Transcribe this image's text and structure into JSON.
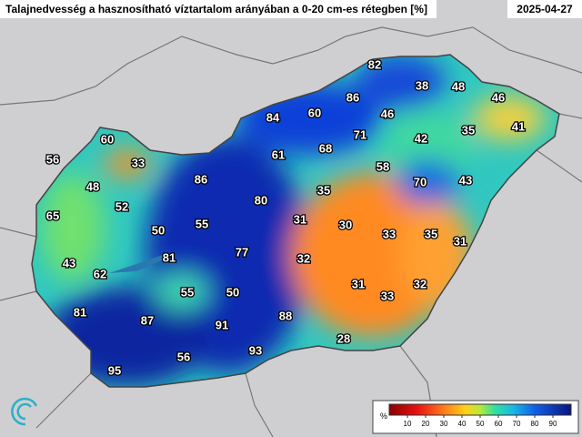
{
  "header": {
    "title": "Talajnedvesség a hasznosítható víztartalom arányában a 0-20 cm-es rétegben [%]",
    "date": "2025-04-27"
  },
  "stations": [
    82,
    38,
    48,
    46,
    86,
    60,
    84,
    46,
    71,
    42,
    35,
    41,
    60,
    68,
    61,
    56,
    33,
    58,
    86,
    70,
    43,
    48,
    80,
    35,
    52,
    65,
    55,
    50,
    31,
    30,
    33,
    35,
    77,
    81,
    31,
    43,
    62,
    32,
    55,
    50,
    31,
    33,
    32,
    81,
    87,
    91,
    88,
    28,
    93,
    56,
    95
  ],
  "colorbar": {
    "unit": "%",
    "range": [
      0,
      100
    ],
    "ticks": [
      10,
      20,
      30,
      40,
      50,
      60,
      70,
      80,
      90
    ]
  }
}
